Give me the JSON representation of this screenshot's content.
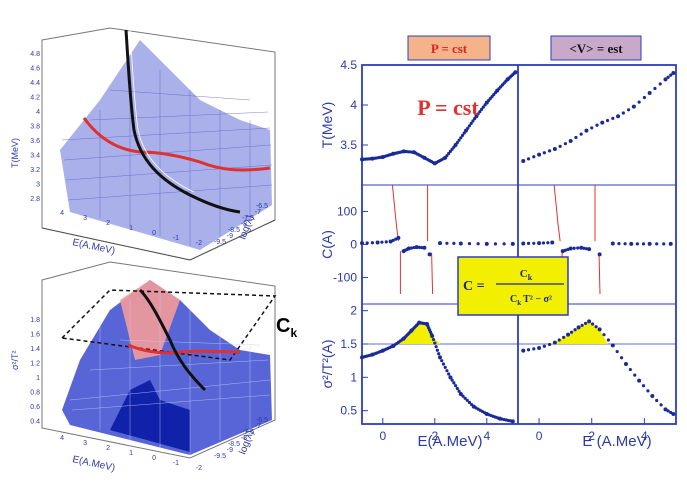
{
  "colors": {
    "axis": "#2a3cc4",
    "marker": "#1a2a9a",
    "curve_red": "#e03030",
    "curve_black": "#111111",
    "surface": "#8e96e0",
    "surface_dark": "#2233bb",
    "highlight": "#f2f000",
    "header_left_bg": "#f5b38a",
    "header_right_bg": "#c9a9c9",
    "formula_bg": "#f2f000"
  },
  "header": {
    "left": "P  = cst",
    "right": "<V> = est"
  },
  "big_label": "P = cst",
  "ck_label": "C",
  "ck_sub": "k",
  "formula": {
    "lhs": "C =",
    "numerator": "C",
    "numerator_sub": "k",
    "denominator": "C",
    "denominator_sub": "k",
    "denominator_rest": "T² − σ²"
  },
  "plot3d_top": {
    "zlabel": "T(MeV)",
    "zticks": [
      "4.8",
      "4.6",
      "4.4",
      "4.2",
      "4",
      "3.8",
      "3.6",
      "3.4",
      "3.2",
      "3",
      "2.8"
    ],
    "xlabel": "E(A.MeV)",
    "xticks": [
      "4",
      "3",
      "2",
      "1",
      "0",
      "-1",
      "-2"
    ],
    "ylabel": "log(λ)",
    "yticks": [
      "-9.5",
      "-9",
      "-8.5",
      "-8",
      "-7.5",
      "-7",
      "-6.5"
    ]
  },
  "plot3d_bottom": {
    "zlabel": "σ²/T²",
    "zticks": [
      "1.8",
      "1.6",
      "1.4",
      "1.2",
      "1",
      "0.8",
      "0.6",
      "0.4"
    ],
    "xlabel": "E(A.MeV)",
    "xticks": [
      "4",
      "3",
      "2",
      "1",
      "0",
      "-1",
      "-2"
    ],
    "ylabel": "log(λ)",
    "yticks": [
      "-9.5",
      "-9",
      "-8.5",
      "-8",
      "-7.5",
      "-7",
      "-6.5"
    ]
  },
  "chart_data": [
    {
      "type": "line",
      "title": "P = cst",
      "xlabel": "E(A.MeV)",
      "xlim": [
        -0.8,
        5.2
      ],
      "panels": [
        {
          "ylabel": "T(MeV)",
          "ylim": [
            3,
            4.5
          ],
          "yticks": [
            3.5,
            4,
            4.5
          ],
          "y_tick_labels": [
            "3.5",
            "4",
            "4.5"
          ],
          "series": [
            {
              "name": "T",
              "x": [
                -0.8,
                -0.4,
                0,
                0.4,
                0.8,
                1.2,
                1.6,
                2.0,
                2.4,
                2.8,
                3.2,
                3.6,
                4.0,
                4.4,
                4.8,
                5.1
              ],
              "values": [
                3.32,
                3.33,
                3.35,
                3.39,
                3.42,
                3.41,
                3.34,
                3.27,
                3.34,
                3.5,
                3.68,
                3.86,
                4.03,
                4.18,
                4.32,
                4.41
              ]
            }
          ]
        },
        {
          "ylabel": "C(A)",
          "ylim": [
            -180,
            180
          ],
          "yticks": [
            -100,
            0,
            100
          ],
          "y_tick_labels": [
            "-100",
            "0",
            "100"
          ],
          "series": [
            {
              "name": "C",
              "x": [
                -0.8,
                -0.2,
                0.3,
                0.6,
                0.8,
                1.0,
                1.3,
                1.6,
                1.8,
                2.2,
                3,
                4,
                5
              ],
              "values": [
                4,
                6,
                9,
                20,
                -20,
                -12,
                -8,
                -10,
                -30,
                4,
                3,
                2,
                2
              ]
            }
          ]
        },
        {
          "ylabel": "σ²/T²(A)",
          "ylim": [
            0.3,
            2.1
          ],
          "yticks": [
            0.5,
            1,
            1.5,
            2
          ],
          "y_tick_labels": [
            "0.5",
            "1",
            "1.5",
            "2"
          ],
          "reference_line": 1.5,
          "series": [
            {
              "name": "sigma2",
              "x": [
                -0.8,
                -0.4,
                0,
                0.4,
                0.8,
                1.1,
                1.4,
                1.7,
                1.9,
                2.2,
                2.6,
                3.0,
                3.5,
                4.0,
                4.5,
                5.0
              ],
              "values": [
                1.3,
                1.34,
                1.4,
                1.47,
                1.58,
                1.7,
                1.82,
                1.8,
                1.62,
                1.3,
                1.0,
                0.75,
                0.56,
                0.45,
                0.38,
                0.34
              ]
            }
          ]
        }
      ],
      "x_tick_labels": [
        "0",
        "2",
        "4"
      ]
    },
    {
      "type": "scatter",
      "title": "<V> = est",
      "xlabel": "E (A.MeV)",
      "xlim": [
        -0.8,
        5.2
      ],
      "panels": [
        {
          "ylabel": "T(MeV)",
          "ylim": [
            3,
            4.5
          ],
          "series": [
            {
              "name": "T",
              "x": [
                -0.6,
                0,
                0.6,
                1.2,
                1.8,
                2.4,
                3,
                3.6,
                4.2,
                4.8,
                5.1
              ],
              "values": [
                3.3,
                3.38,
                3.45,
                3.55,
                3.68,
                3.78,
                3.86,
                3.98,
                4.15,
                4.32,
                4.4
              ]
            }
          ]
        },
        {
          "ylabel": "C(A)",
          "ylim": [
            -180,
            180
          ],
          "series": [
            {
              "name": "C",
              "x": [
                -0.6,
                0,
                0.5,
                0.9,
                1.2,
                1.6,
                1.9,
                2.3,
                2.8,
                3.5,
                4.2,
                5
              ],
              "values": [
                3,
                4,
                6,
                -20,
                -12,
                -10,
                -14,
                -30,
                3,
                2,
                2,
                2
              ]
            }
          ]
        },
        {
          "ylabel": "σ²/T²(A)",
          "ylim": [
            0.3,
            2.1
          ],
          "reference_line": 1.5,
          "series": [
            {
              "name": "sigma2",
              "x": [
                -0.6,
                0,
                0.6,
                1.1,
                1.5,
                1.9,
                2.3,
                2.8,
                3.3,
                3.8,
                4.3,
                4.8,
                5.1
              ],
              "values": [
                1.4,
                1.44,
                1.52,
                1.64,
                1.75,
                1.84,
                1.72,
                1.48,
                1.2,
                0.95,
                0.72,
                0.52,
                0.45
              ]
            }
          ]
        }
      ],
      "x_tick_labels": [
        "0",
        "2",
        "4"
      ]
    }
  ]
}
